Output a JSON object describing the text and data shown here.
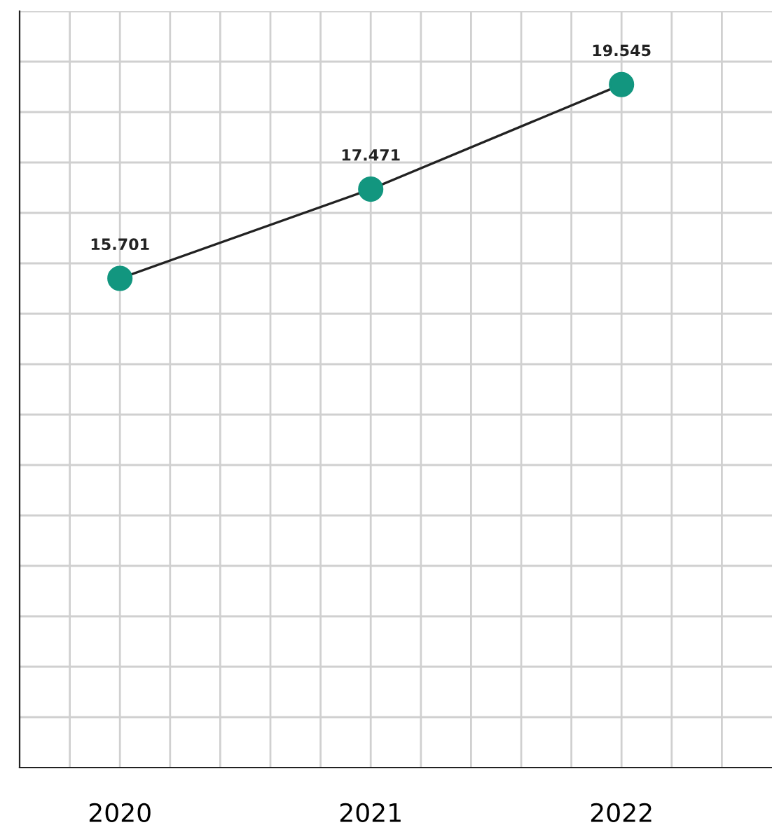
{
  "chart_data": {
    "type": "line",
    "x": [
      2020,
      2021,
      2022
    ],
    "series": [
      {
        "color": "#12967f",
        "values": [
          15.701,
          17.471,
          19.545
        ]
      }
    ],
    "data_labels": true,
    "marker": "circle",
    "line_style": "solid",
    "grid": true,
    "tick_labels": "x",
    "xlim": [
      2019.6,
      2022.6
    ],
    "xticks": [
      {
        "value": 2019.8,
        "label": null
      },
      {
        "value": 2020,
        "label": "2020"
      },
      {
        "value": 2020.2,
        "label": null
      },
      {
        "value": 2020.4,
        "label": null
      },
      {
        "value": 2020.6,
        "label": null
      },
      {
        "value": 2020.8,
        "label": null
      },
      {
        "value": 2021,
        "label": "2021"
      },
      {
        "value": 2021.2,
        "label": null
      },
      {
        "value": 2021.4,
        "label": null
      },
      {
        "value": 2021.6,
        "label": null
      },
      {
        "value": 2021.8,
        "label": null
      },
      {
        "value": 2022,
        "label": "2022"
      },
      {
        "value": 2022.2,
        "label": null
      },
      {
        "value": 2022.4,
        "label": null
      }
    ],
    "ylim": [
      6,
      21
    ],
    "yticks": [
      {
        "value": 7,
        "label": null
      },
      {
        "value": 8,
        "label": null
      },
      {
        "value": 9,
        "label": null
      },
      {
        "value": 10,
        "label": null
      },
      {
        "value": 11,
        "label": null
      },
      {
        "value": 12,
        "label": null
      },
      {
        "value": 13,
        "label": null
      },
      {
        "value": 14,
        "label": null
      },
      {
        "value": 15,
        "label": null
      },
      {
        "value": 16,
        "label": null
      },
      {
        "value": 17,
        "label": null
      },
      {
        "value": 18,
        "label": null
      },
      {
        "value": 19,
        "label": null
      },
      {
        "value": 20,
        "label": null
      },
      {
        "value": 21,
        "label": null
      }
    ]
  }
}
